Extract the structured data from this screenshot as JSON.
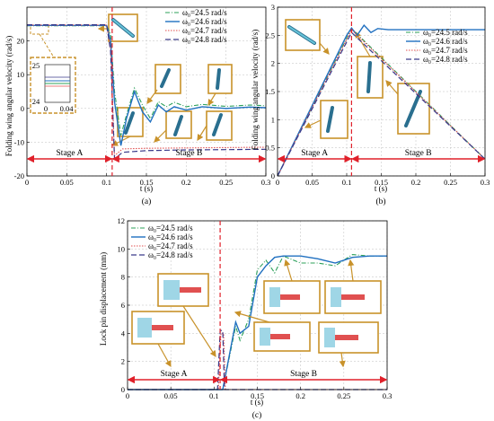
{
  "chart_data": [
    {
      "id": "a",
      "type": "line",
      "sublabel": "(a)",
      "xlabel": "t (s)",
      "ylabel": "Folding wing angular velocity (rad/s)",
      "xlim": [
        0,
        0.3
      ],
      "ylim": [
        -20,
        30
      ],
      "xticks": [
        "0",
        "0.05",
        "0.1",
        "0.15",
        "0.2",
        "0.25",
        "0.3"
      ],
      "yticks": [
        "-20",
        "-10",
        "0",
        "10",
        "20"
      ],
      "stage_a_label": "Stage A",
      "stage_b_label": "Stage B",
      "divider_t": 0.107,
      "zoom_inset": {
        "yticks": [
          "25",
          "24"
        ],
        "xticks": [
          "0",
          "0.04"
        ]
      },
      "series": [
        {
          "name": "ω₀=24.5 rad/s",
          "legend_sub": "0",
          "x": [
            0,
            0.1,
            0.105,
            0.11,
            0.118,
            0.125,
            0.135,
            0.145,
            0.155,
            0.165,
            0.175,
            0.185,
            0.2,
            0.22,
            0.25,
            0.28,
            0.3
          ],
          "y": [
            24.5,
            24.5,
            22,
            5,
            -8,
            -2,
            6,
            1,
            -3,
            2,
            0.5,
            1.8,
            0.5,
            1.2,
            0.6,
            1,
            0.8
          ]
        },
        {
          "name": "ω₀=24.6 rad/s",
          "legend_sub": "0",
          "x": [
            0,
            0.1,
            0.105,
            0.11,
            0.118,
            0.125,
            0.135,
            0.145,
            0.155,
            0.165,
            0.175,
            0.185,
            0.2,
            0.22,
            0.25,
            0.28,
            0.3
          ],
          "y": [
            24.6,
            24.6,
            20,
            2,
            -11,
            -3,
            5,
            -1,
            -4,
            1,
            -1,
            0.5,
            -0.5,
            0.5,
            0,
            0.4,
            0.2
          ]
        },
        {
          "name": "ω₀=24.7 rad/s",
          "legend_sub": "0",
          "x": [
            0,
            0.1,
            0.105,
            0.11,
            0.12,
            0.15,
            0.2,
            0.25,
            0.3
          ],
          "y": [
            24.7,
            24.7,
            18,
            -14,
            -12,
            -11.8,
            -11.7,
            -11.6,
            -11.5
          ]
        },
        {
          "name": "ω₀=24.8 rad/s",
          "legend_sub": "0",
          "x": [
            0,
            0.1,
            0.105,
            0.11,
            0.12,
            0.15,
            0.2,
            0.25,
            0.3
          ],
          "y": [
            24.8,
            24.8,
            17,
            -15,
            -13,
            -12.5,
            -12.3,
            -12.2,
            -12.1
          ]
        }
      ]
    },
    {
      "id": "b",
      "type": "line",
      "sublabel": "(b)",
      "xlabel": "t (s)",
      "ylabel": "Folding wing angular velocity (rad/s)",
      "xlim": [
        0,
        0.3
      ],
      "ylim": [
        0,
        3
      ],
      "xticks": [
        "0",
        "0.05",
        "0.1",
        "0.15",
        "0.2",
        "0.25",
        "0.3"
      ],
      "yticks": [
        "0",
        "0.5",
        "1",
        "1.5",
        "2",
        "2.5",
        "3"
      ],
      "stage_a_label": "Stage A",
      "stage_b_label": "Stage B",
      "divider_t": 0.107,
      "series": [
        {
          "name": "ω₀=24.5 rad/s",
          "legend_sub": "0",
          "x": [
            0,
            0.107,
            0.3
          ],
          "y": [
            0,
            2.62,
            0.3
          ]
        },
        {
          "name": "ω₀=24.6 rad/s",
          "legend_sub": "0",
          "x": [
            0,
            0.1,
            0.107,
            0.115,
            0.125,
            0.135,
            0.145,
            0.16,
            0.2,
            0.25,
            0.3
          ],
          "y": [
            0,
            2.5,
            2.63,
            2.5,
            2.68,
            2.55,
            2.62,
            2.6,
            2.6,
            2.6,
            2.6
          ]
        },
        {
          "name": "ω₀=24.7 rad/s",
          "legend_sub": "0",
          "x": [
            0,
            0.107,
            0.3
          ],
          "y": [
            0,
            2.6,
            0.3
          ]
        },
        {
          "name": "ω₀=24.8 rad/s",
          "legend_sub": "0",
          "x": [
            0,
            0.107,
            0.3
          ],
          "y": [
            0,
            2.55,
            0.3
          ]
        }
      ]
    },
    {
      "id": "c",
      "type": "line",
      "sublabel": "(c)",
      "xlabel": "t (s)",
      "ylabel": "Lock pin displacement (mm)",
      "xlim": [
        0,
        0.3
      ],
      "ylim": [
        0,
        12
      ],
      "xticks": [
        "0",
        "0.05",
        "0.1",
        "0.15",
        "0.2",
        "0.25",
        "0.3"
      ],
      "yticks": [
        "0",
        "2",
        "4",
        "6",
        "8",
        "10",
        "12"
      ],
      "stage_a_label": "Stage A",
      "stage_b_label": "Stage B",
      "divider_t": 0.107,
      "series": [
        {
          "name": "ω₀=24.5 rad/s",
          "legend_sub": "0",
          "x": [
            0,
            0.11,
            0.125,
            0.13,
            0.14,
            0.15,
            0.16,
            0.17,
            0.18,
            0.2,
            0.22,
            0.24,
            0.26,
            0.28,
            0.3
          ],
          "y": [
            0,
            0,
            4.5,
            3.5,
            5,
            8.5,
            9.2,
            8.3,
            9.5,
            9,
            9,
            8.8,
            9.6,
            9.5,
            9.5
          ]
        },
        {
          "name": "ω₀=24.6 rad/s",
          "legend_sub": "0",
          "x": [
            0,
            0.11,
            0.125,
            0.13,
            0.14,
            0.15,
            0.16,
            0.17,
            0.18,
            0.2,
            0.22,
            0.24,
            0.26,
            0.28,
            0.3
          ],
          "y": [
            0,
            0,
            4.8,
            4,
            4.5,
            8,
            8.8,
            9.4,
            9.5,
            9.5,
            9.3,
            9,
            9.4,
            9.5,
            9.5
          ]
        },
        {
          "name": "ω₀=24.7 rad/s",
          "legend_sub": "0",
          "x": [
            0,
            0.105,
            0.108,
            0.111,
            0.113,
            0.3
          ],
          "y": [
            0,
            0,
            4,
            4,
            0,
            0
          ]
        },
        {
          "name": "ω₀=24.8 rad/s",
          "legend_sub": "0",
          "x": [
            0,
            0.104,
            0.107,
            0.11,
            0.112,
            0.3
          ],
          "y": [
            0,
            0,
            4.2,
            4.2,
            0,
            0
          ]
        }
      ]
    }
  ],
  "style": {
    "series_colors": [
      "#2ca05a",
      "#2070c0",
      "#e05050",
      "#3a3a8a"
    ],
    "stage_arrow_color": "#e0202a",
    "inset_border_color": "#c8922a"
  }
}
